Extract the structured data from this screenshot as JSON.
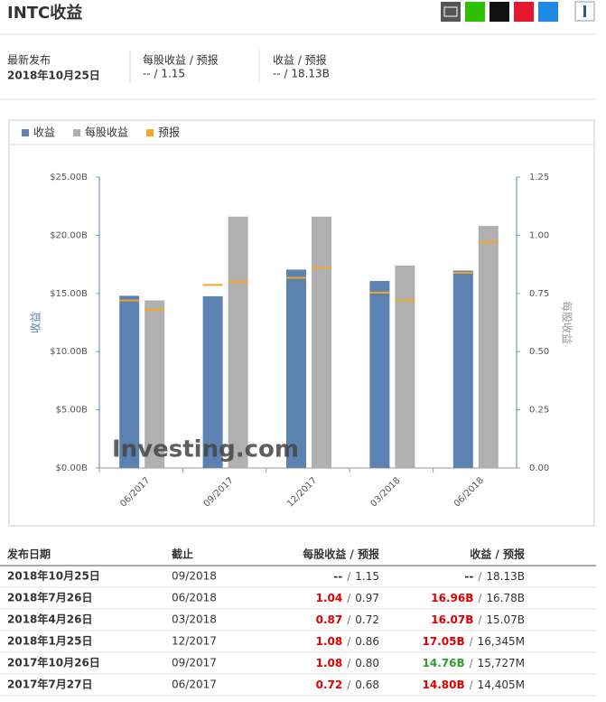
{
  "header": {
    "title": "INTC收益"
  },
  "info": {
    "items": [
      {
        "label": "最新发布",
        "value": "2018年10月25日"
      },
      {
        "label": "每股收益 / 预报",
        "value": "-- / 1.15"
      },
      {
        "label": "收益 / 预报",
        "value": "-- / 18.13B"
      }
    ]
  },
  "chart_data": {
    "type": "bar",
    "categories": [
      "06/2017",
      "09/2017",
      "12/2017",
      "03/2018",
      "06/2018"
    ],
    "series": [
      {
        "name": "收益",
        "color": "#5b82b0",
        "values": [
          14.8,
          14.76,
          17.05,
          16.07,
          16.96
        ]
      },
      {
        "name": "每股收益",
        "color": "#b0b0b0",
        "axis": "y2",
        "values": [
          0.72,
          1.08,
          1.08,
          0.87,
          1.04
        ]
      },
      {
        "name": "预报",
        "color": "#f5a623",
        "values": [
          14.405,
          15.727,
          16.345,
          15.07,
          16.78
        ],
        "y2_values": [
          0.68,
          0.8,
          0.86,
          0.72,
          0.97
        ]
      }
    ],
    "y_label": "收益",
    "y2_label": "每股收益",
    "watermark": "Investing.com",
    "ylim": [
      0,
      25
    ],
    "yticks": [
      {
        "value": 0,
        "label": "$0.00B"
      },
      {
        "value": 5,
        "label": "$5.00B"
      },
      {
        "value": 10,
        "label": "$10.00B"
      },
      {
        "value": 15,
        "label": "$15.00B"
      },
      {
        "value": 20,
        "label": "$20.00B"
      },
      {
        "value": 25,
        "label": "$25.00B"
      }
    ],
    "y2lim": [
      0,
      1.25
    ],
    "y2ticks": [
      {
        "value": 0,
        "label": "0.00"
      },
      0.25,
      {
        "value": 0.5,
        "label": "0.50"
      },
      0.75,
      {
        "value": 1,
        "label": "1.00"
      },
      1.25
    ]
  },
  "table": {
    "headers": [
      "发布日期",
      "截止",
      "每股收益 / 预报",
      "收益 / 预报"
    ],
    "separator": "/",
    "rows": [
      {
        "date": "2018年10月25日",
        "period": "09/2018",
        "eps": "--",
        "eps_forecast": "1.15",
        "revenue": "--",
        "revenue_forecast": "18.13B",
        "eps_color": "#333333",
        "revenue_color": "#333333"
      },
      {
        "date": "2018年7月26日",
        "period": "06/2018",
        "eps": "1.04",
        "eps_forecast": "0.97",
        "revenue": "16.96B",
        "revenue_forecast": "16.78B",
        "eps_color": "#e00000",
        "revenue_color": "#e00000"
      },
      {
        "date": "2018年4月26日",
        "period": "03/2018",
        "eps": "0.87",
        "eps_forecast": "0.72",
        "revenue": "16.07B",
        "revenue_forecast": "15.07B",
        "eps_color": "#e00000",
        "revenue_color": "#e00000"
      },
      {
        "date": "2018年1月25日",
        "period": "12/2017",
        "eps": "1.08",
        "eps_forecast": "0.86",
        "revenue": "17.05B",
        "revenue_forecast": "16,345M",
        "eps_color": "#e00000",
        "revenue_color": "#e00000"
      },
      {
        "date": "2017年10月26日",
        "period": "09/2017",
        "eps": "1.08",
        "eps_forecast": "0.80",
        "revenue": "14.76B",
        "revenue_forecast": "15,727M",
        "eps_color": "#e00000",
        "revenue_color": "#2e9e2e"
      },
      {
        "date": "2017年7月27日",
        "period": "06/2017",
        "eps": "0.72",
        "eps_forecast": "0.68",
        "revenue": "14.80B",
        "revenue_forecast": "14,405M",
        "eps_color": "#e00000",
        "revenue_color": "#e00000"
      }
    ]
  }
}
